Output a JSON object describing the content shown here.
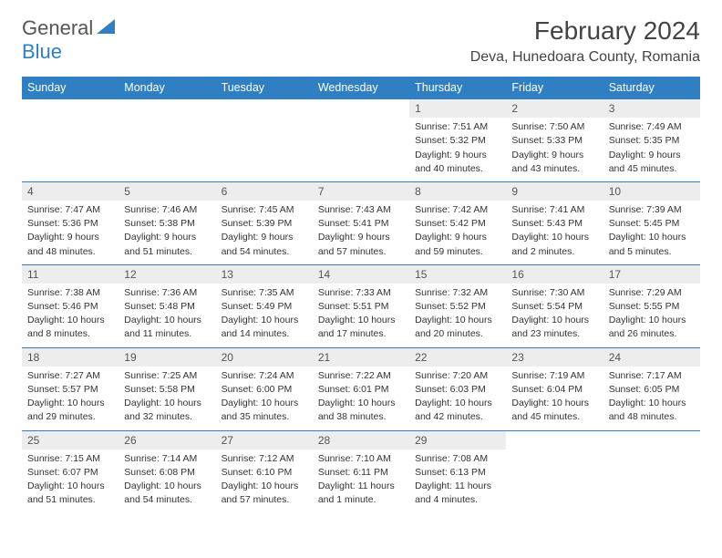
{
  "logo": {
    "text1": "General",
    "text2": "Blue"
  },
  "title": "February 2024",
  "location": "Deva, Hunedoara County, Romania",
  "colors": {
    "header_bg": "#2f7fc2",
    "header_text": "#ffffff",
    "daynum_bg": "#ededed",
    "rule": "#2f7fc2",
    "body_text": "#333333"
  },
  "day_headers": [
    "Sunday",
    "Monday",
    "Tuesday",
    "Wednesday",
    "Thursday",
    "Friday",
    "Saturday"
  ],
  "weeks": [
    [
      null,
      null,
      null,
      null,
      {
        "n": "1",
        "sr": "Sunrise: 7:51 AM",
        "ss": "Sunset: 5:32 PM",
        "d1": "Daylight: 9 hours",
        "d2": "and 40 minutes."
      },
      {
        "n": "2",
        "sr": "Sunrise: 7:50 AM",
        "ss": "Sunset: 5:33 PM",
        "d1": "Daylight: 9 hours",
        "d2": "and 43 minutes."
      },
      {
        "n": "3",
        "sr": "Sunrise: 7:49 AM",
        "ss": "Sunset: 5:35 PM",
        "d1": "Daylight: 9 hours",
        "d2": "and 45 minutes."
      }
    ],
    [
      {
        "n": "4",
        "sr": "Sunrise: 7:47 AM",
        "ss": "Sunset: 5:36 PM",
        "d1": "Daylight: 9 hours",
        "d2": "and 48 minutes."
      },
      {
        "n": "5",
        "sr": "Sunrise: 7:46 AM",
        "ss": "Sunset: 5:38 PM",
        "d1": "Daylight: 9 hours",
        "d2": "and 51 minutes."
      },
      {
        "n": "6",
        "sr": "Sunrise: 7:45 AM",
        "ss": "Sunset: 5:39 PM",
        "d1": "Daylight: 9 hours",
        "d2": "and 54 minutes."
      },
      {
        "n": "7",
        "sr": "Sunrise: 7:43 AM",
        "ss": "Sunset: 5:41 PM",
        "d1": "Daylight: 9 hours",
        "d2": "and 57 minutes."
      },
      {
        "n": "8",
        "sr": "Sunrise: 7:42 AM",
        "ss": "Sunset: 5:42 PM",
        "d1": "Daylight: 9 hours",
        "d2": "and 59 minutes."
      },
      {
        "n": "9",
        "sr": "Sunrise: 7:41 AM",
        "ss": "Sunset: 5:43 PM",
        "d1": "Daylight: 10 hours",
        "d2": "and 2 minutes."
      },
      {
        "n": "10",
        "sr": "Sunrise: 7:39 AM",
        "ss": "Sunset: 5:45 PM",
        "d1": "Daylight: 10 hours",
        "d2": "and 5 minutes."
      }
    ],
    [
      {
        "n": "11",
        "sr": "Sunrise: 7:38 AM",
        "ss": "Sunset: 5:46 PM",
        "d1": "Daylight: 10 hours",
        "d2": "and 8 minutes."
      },
      {
        "n": "12",
        "sr": "Sunrise: 7:36 AM",
        "ss": "Sunset: 5:48 PM",
        "d1": "Daylight: 10 hours",
        "d2": "and 11 minutes."
      },
      {
        "n": "13",
        "sr": "Sunrise: 7:35 AM",
        "ss": "Sunset: 5:49 PM",
        "d1": "Daylight: 10 hours",
        "d2": "and 14 minutes."
      },
      {
        "n": "14",
        "sr": "Sunrise: 7:33 AM",
        "ss": "Sunset: 5:51 PM",
        "d1": "Daylight: 10 hours",
        "d2": "and 17 minutes."
      },
      {
        "n": "15",
        "sr": "Sunrise: 7:32 AM",
        "ss": "Sunset: 5:52 PM",
        "d1": "Daylight: 10 hours",
        "d2": "and 20 minutes."
      },
      {
        "n": "16",
        "sr": "Sunrise: 7:30 AM",
        "ss": "Sunset: 5:54 PM",
        "d1": "Daylight: 10 hours",
        "d2": "and 23 minutes."
      },
      {
        "n": "17",
        "sr": "Sunrise: 7:29 AM",
        "ss": "Sunset: 5:55 PM",
        "d1": "Daylight: 10 hours",
        "d2": "and 26 minutes."
      }
    ],
    [
      {
        "n": "18",
        "sr": "Sunrise: 7:27 AM",
        "ss": "Sunset: 5:57 PM",
        "d1": "Daylight: 10 hours",
        "d2": "and 29 minutes."
      },
      {
        "n": "19",
        "sr": "Sunrise: 7:25 AM",
        "ss": "Sunset: 5:58 PM",
        "d1": "Daylight: 10 hours",
        "d2": "and 32 minutes."
      },
      {
        "n": "20",
        "sr": "Sunrise: 7:24 AM",
        "ss": "Sunset: 6:00 PM",
        "d1": "Daylight: 10 hours",
        "d2": "and 35 minutes."
      },
      {
        "n": "21",
        "sr": "Sunrise: 7:22 AM",
        "ss": "Sunset: 6:01 PM",
        "d1": "Daylight: 10 hours",
        "d2": "and 38 minutes."
      },
      {
        "n": "22",
        "sr": "Sunrise: 7:20 AM",
        "ss": "Sunset: 6:03 PM",
        "d1": "Daylight: 10 hours",
        "d2": "and 42 minutes."
      },
      {
        "n": "23",
        "sr": "Sunrise: 7:19 AM",
        "ss": "Sunset: 6:04 PM",
        "d1": "Daylight: 10 hours",
        "d2": "and 45 minutes."
      },
      {
        "n": "24",
        "sr": "Sunrise: 7:17 AM",
        "ss": "Sunset: 6:05 PM",
        "d1": "Daylight: 10 hours",
        "d2": "and 48 minutes."
      }
    ],
    [
      {
        "n": "25",
        "sr": "Sunrise: 7:15 AM",
        "ss": "Sunset: 6:07 PM",
        "d1": "Daylight: 10 hours",
        "d2": "and 51 minutes."
      },
      {
        "n": "26",
        "sr": "Sunrise: 7:14 AM",
        "ss": "Sunset: 6:08 PM",
        "d1": "Daylight: 10 hours",
        "d2": "and 54 minutes."
      },
      {
        "n": "27",
        "sr": "Sunrise: 7:12 AM",
        "ss": "Sunset: 6:10 PM",
        "d1": "Daylight: 10 hours",
        "d2": "and 57 minutes."
      },
      {
        "n": "28",
        "sr": "Sunrise: 7:10 AM",
        "ss": "Sunset: 6:11 PM",
        "d1": "Daylight: 11 hours",
        "d2": "and 1 minute."
      },
      {
        "n": "29",
        "sr": "Sunrise: 7:08 AM",
        "ss": "Sunset: 6:13 PM",
        "d1": "Daylight: 11 hours",
        "d2": "and 4 minutes."
      },
      null,
      null
    ]
  ]
}
